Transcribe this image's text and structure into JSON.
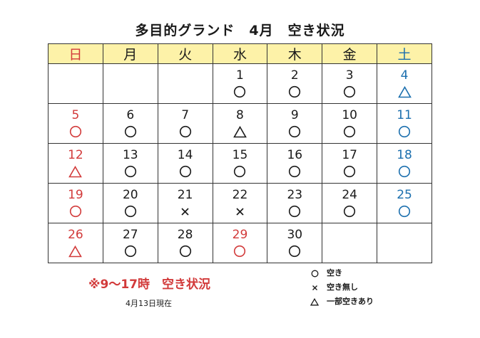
{
  "title": "多目的グランド　4月　空き状況",
  "weekdays": [
    "日",
    "月",
    "火",
    "水",
    "木",
    "金",
    "土"
  ],
  "weeks": [
    [
      {
        "day": "",
        "mark": ""
      },
      {
        "day": "",
        "mark": ""
      },
      {
        "day": "",
        "mark": ""
      },
      {
        "day": "1",
        "mark": "circle"
      },
      {
        "day": "2",
        "mark": "circle"
      },
      {
        "day": "3",
        "mark": "circle"
      },
      {
        "day": "4",
        "mark": "triangle"
      }
    ],
    [
      {
        "day": "5",
        "mark": "circle"
      },
      {
        "day": "6",
        "mark": "circle"
      },
      {
        "day": "7",
        "mark": "circle"
      },
      {
        "day": "8",
        "mark": "triangle"
      },
      {
        "day": "9",
        "mark": "circle"
      },
      {
        "day": "10",
        "mark": "circle"
      },
      {
        "day": "11",
        "mark": "circle"
      }
    ],
    [
      {
        "day": "12",
        "mark": "triangle"
      },
      {
        "day": "13",
        "mark": "circle"
      },
      {
        "day": "14",
        "mark": "circle"
      },
      {
        "day": "15",
        "mark": "circle"
      },
      {
        "day": "16",
        "mark": "circle"
      },
      {
        "day": "17",
        "mark": "circle"
      },
      {
        "day": "18",
        "mark": "circle"
      }
    ],
    [
      {
        "day": "19",
        "mark": "circle"
      },
      {
        "day": "20",
        "mark": "circle"
      },
      {
        "day": "21",
        "mark": "cross"
      },
      {
        "day": "22",
        "mark": "cross"
      },
      {
        "day": "23",
        "mark": "circle"
      },
      {
        "day": "24",
        "mark": "circle"
      },
      {
        "day": "25",
        "mark": "circle"
      }
    ],
    [
      {
        "day": "26",
        "mark": "triangle"
      },
      {
        "day": "27",
        "mark": "circle"
      },
      {
        "day": "28",
        "mark": "circle"
      },
      {
        "day": "29",
        "mark": "circle",
        "holiday": true
      },
      {
        "day": "30",
        "mark": "circle"
      },
      {
        "day": "",
        "mark": ""
      },
      {
        "day": "",
        "mark": ""
      }
    ]
  ],
  "colors": {
    "sunday_holiday": "#d23a3a",
    "saturday": "#1b6fae",
    "header_bg": "#fdf2a8"
  },
  "note": "※9～17時　空き状況",
  "as_of": "4月13日現在",
  "legend": [
    {
      "mark": "circle",
      "label": "空き"
    },
    {
      "mark": "cross",
      "label": "空き無し"
    },
    {
      "mark": "triangle",
      "label": "一部空きあり"
    }
  ]
}
